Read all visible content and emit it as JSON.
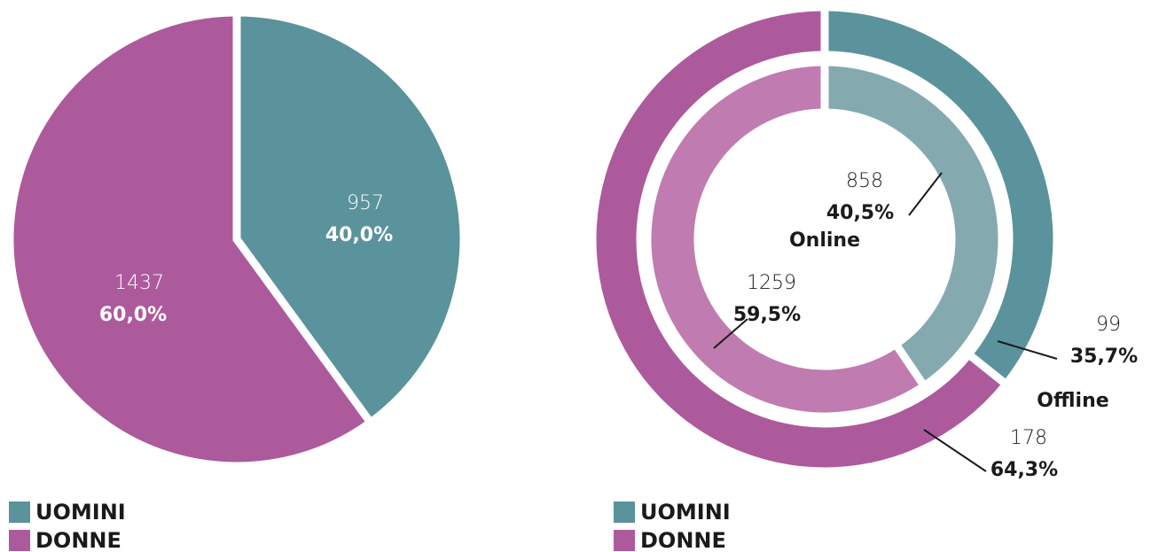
{
  "chart_data": [
    {
      "type": "pie",
      "categories": [
        "UOMINI",
        "DONNE"
      ],
      "colors": [
        "#5a939c",
        "#ad5a9c"
      ],
      "values": [
        957,
        1437
      ],
      "percentages": [
        40.0,
        60.0
      ],
      "percentage_labels": [
        "40,0%",
        "60,0%"
      ]
    },
    {
      "type": "donut",
      "categories": [
        "UOMINI",
        "DONNE"
      ],
      "colors": [
        "#5a939c",
        "#ad5a9c"
      ],
      "rings": [
        {
          "name": "Online",
          "colors": [
            "#84aab0",
            "#c07cb0"
          ],
          "values": [
            858,
            1259
          ],
          "percentages": [
            40.5,
            59.5
          ],
          "percentage_labels": [
            "40,5%",
            "59,5%"
          ]
        },
        {
          "name": "Offline",
          "colors": [
            "#5a939c",
            "#ad5a9c"
          ],
          "values": [
            99,
            178
          ],
          "percentages": [
            35.7,
            64.3
          ],
          "percentage_labels": [
            "35,7%",
            "64,3%"
          ]
        }
      ]
    }
  ]
}
